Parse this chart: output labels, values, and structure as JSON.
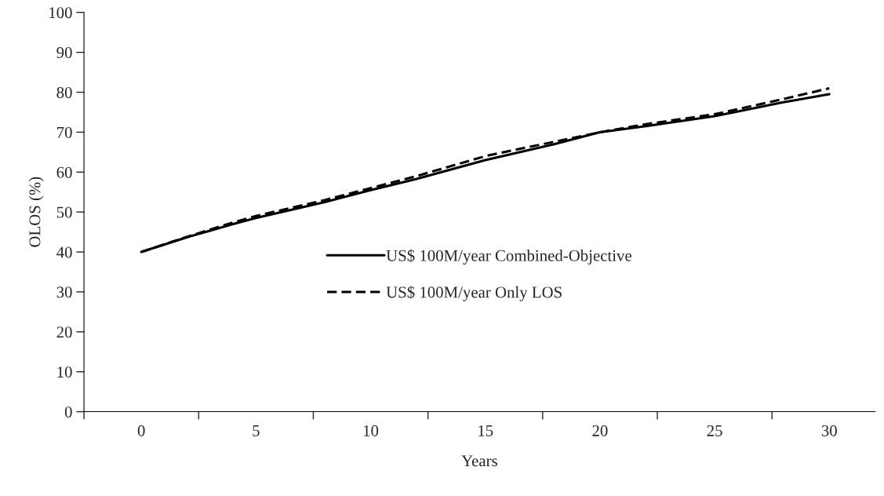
{
  "chart_data": {
    "type": "line",
    "xlabel": "Years",
    "ylabel": "OLOS (%)",
    "x": [
      0,
      2,
      4,
      5,
      8,
      10,
      12,
      15,
      18,
      20,
      22,
      25,
      28,
      30
    ],
    "series": [
      {
        "name": "US$ 100M/year Combined-Objective",
        "color": "#000000",
        "line_style": "solid",
        "values": [
          40,
          43.7,
          47,
          48.5,
          52.5,
          55.5,
          58.3,
          63,
          67,
          70,
          71.5,
          74,
          77.5,
          79.5
        ]
      },
      {
        "name": "US$ 100M/year Only LOS",
        "color": "#000000",
        "line_style": "dashed",
        "values": [
          40,
          43.8,
          47.4,
          49,
          53,
          56,
          59,
          64,
          67.6,
          70,
          72,
          74.5,
          78.3,
          81
        ]
      }
    ],
    "xlim": [
      -2.5,
      32
    ],
    "xticks": [
      {
        "value": -2.5,
        "label": null
      },
      0,
      {
        "value": 2.5,
        "label": null
      },
      5,
      {
        "value": 7.5,
        "label": null
      },
      10,
      {
        "value": 12.5,
        "label": null
      },
      15,
      {
        "value": 17.5,
        "label": null
      },
      20,
      {
        "value": 22.5,
        "label": null
      },
      25,
      {
        "value": 27.5,
        "label": null
      },
      30
    ],
    "ylim": [
      0,
      100
    ],
    "yticks": [
      0,
      10,
      20,
      30,
      40,
      50,
      60,
      70,
      80,
      90,
      100
    ],
    "grid": false,
    "legend": "bottom",
    "marker": "none"
  }
}
